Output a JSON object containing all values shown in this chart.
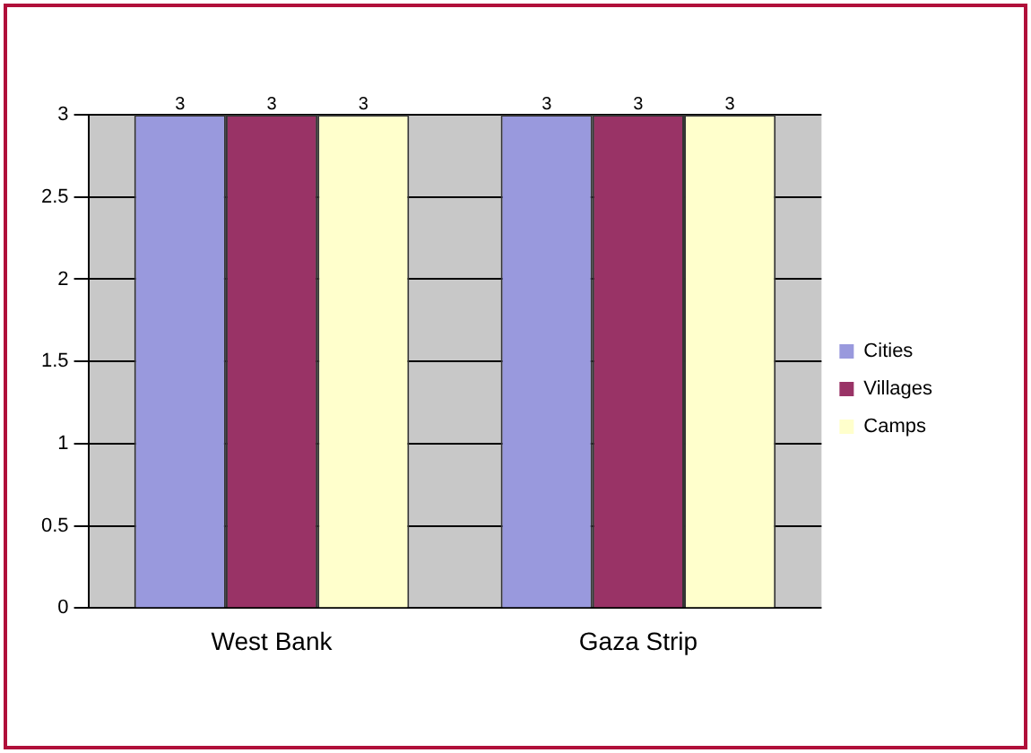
{
  "chart_data": {
    "type": "bar",
    "categories": [
      "West Bank",
      "Gaza Strip"
    ],
    "series": [
      {
        "name": "Cities",
        "color": "#9999dd",
        "values": [
          3,
          3
        ]
      },
      {
        "name": "Villages",
        "color": "#993366",
        "values": [
          3,
          3
        ]
      },
      {
        "name": "Camps",
        "color": "#ffffcc",
        "values": [
          3,
          3
        ]
      }
    ],
    "ylim": [
      0,
      3
    ],
    "yticks": [
      0,
      0.5,
      1,
      1.5,
      2,
      2.5,
      3
    ],
    "grid": "y",
    "legend": "right",
    "data_labels": true
  }
}
